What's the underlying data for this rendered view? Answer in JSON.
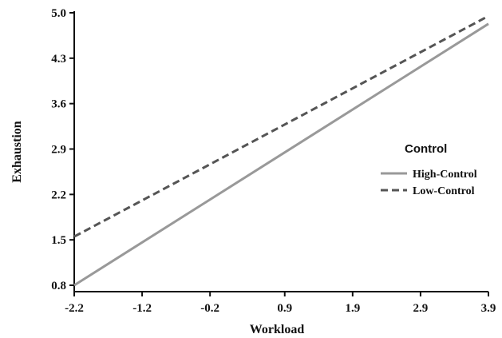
{
  "chart_data": {
    "type": "line",
    "xlabel": "Workload",
    "ylabel": "Exhaustion",
    "x_ticks": [
      "-2.2",
      "-1.2",
      "-0.2",
      "0.9",
      "1.9",
      "2.9",
      "3.9"
    ],
    "y_ticks": [
      "0.8",
      "1.5",
      "2.2",
      "2.9",
      "3.6",
      "4.3",
      "5.0"
    ],
    "xlim": [
      -2.2,
      3.9
    ],
    "ylim": [
      0.8,
      5.0
    ],
    "grid": false,
    "legend": {
      "title": "Control",
      "position": "right"
    },
    "series": [
      {
        "name": "High-Control",
        "style": "solid",
        "color": "#999999",
        "x": [
          -2.2,
          3.9
        ],
        "y": [
          0.8,
          4.83
        ]
      },
      {
        "name": "Low-Control",
        "style": "dashed",
        "color": "#555555",
        "x": [
          -2.2,
          3.9
        ],
        "y": [
          1.55,
          4.95
        ]
      }
    ]
  }
}
